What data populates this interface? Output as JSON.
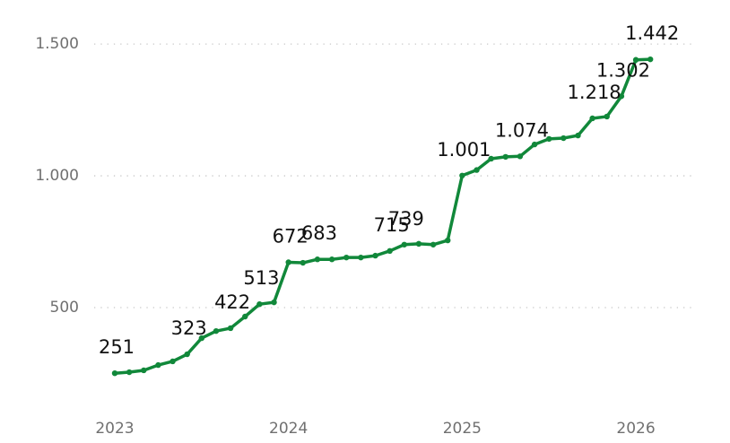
{
  "chart_data": {
    "type": "line",
    "categories": [
      "2023",
      null,
      null,
      null,
      null,
      null,
      null,
      null,
      null,
      null,
      null,
      null,
      "2024",
      null,
      null,
      null,
      null,
      null,
      null,
      null,
      null,
      null,
      null,
      null,
      "2025",
      null,
      null,
      null,
      null,
      null,
      null,
      null,
      null,
      null,
      null,
      null,
      "2026",
      null
    ],
    "series": [
      {
        "color": "#11883a",
        "values": [
          251,
          255,
          262,
          282,
          296,
          323,
          384,
          411,
          422,
          466,
          513,
          520,
          672,
          670,
          683,
          683,
          690,
          690,
          697,
          715,
          739,
          742,
          739,
          755,
          1001,
          1022,
          1065,
          1072,
          1074,
          1119,
          1140,
          1143,
          1153,
          1218,
          1225,
          1302,
          1440,
          1442
        ],
        "value_labels": [
          "251",
          null,
          null,
          null,
          null,
          "323",
          null,
          null,
          "422",
          null,
          "513",
          null,
          "672",
          null,
          "683",
          null,
          null,
          null,
          null,
          "715",
          "739",
          null,
          null,
          null,
          "1.001",
          null,
          null,
          null,
          "1.074",
          null,
          null,
          null,
          null,
          "1.218",
          null,
          "1.302",
          null,
          "1.442"
        ]
      }
    ],
    "ylim": [
      170,
      1565
    ],
    "yticks": [
      {
        "value": 500,
        "label": "500"
      },
      {
        "value": 1000,
        "label": "1.000"
      },
      {
        "value": 1500,
        "label": "1.500"
      }
    ],
    "grid": true
  }
}
